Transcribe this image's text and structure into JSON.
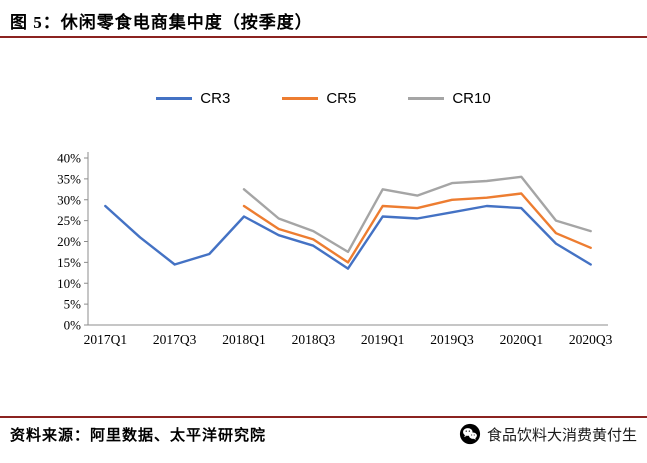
{
  "header": {
    "title": "图 5：休闲零食电商集中度（按季度）"
  },
  "chart_data": {
    "type": "line",
    "title": "休闲零食电商集中度（按季度）",
    "categories": [
      "2017Q1",
      "2017Q2",
      "2017Q3",
      "2017Q4",
      "2018Q1",
      "2018Q2",
      "2018Q3",
      "2018Q4",
      "2019Q1",
      "2019Q2",
      "2019Q3",
      "2019Q4",
      "2020Q1",
      "2020Q2",
      "2020Q3"
    ],
    "x_tick_labels": [
      "2017Q1",
      "2017Q3",
      "2018Q1",
      "2018Q3",
      "2019Q1",
      "2019Q3",
      "2020Q1",
      "2020Q3"
    ],
    "y_ticks": [
      "0%",
      "5%",
      "10%",
      "15%",
      "20%",
      "25%",
      "30%",
      "35%",
      "40%"
    ],
    "ylim": [
      0,
      40
    ],
    "grid": false,
    "legend_position": "top",
    "series": [
      {
        "name": "CR3",
        "color": "#4472C4",
        "values": [
          28.5,
          21,
          14.5,
          17,
          26,
          21.5,
          19,
          13.5,
          26,
          25.5,
          27,
          28.5,
          28,
          19.5,
          14.5
        ]
      },
      {
        "name": "CR5",
        "color": "#ED7D31",
        "values": [
          null,
          null,
          null,
          null,
          28.5,
          23,
          20.5,
          15,
          28.5,
          28,
          30,
          30.5,
          31.5,
          22,
          18.5
        ]
      },
      {
        "name": "CR10",
        "color": "#A5A5A5",
        "values": [
          null,
          null,
          null,
          null,
          32.5,
          25.5,
          22.5,
          17.5,
          32.5,
          31,
          34,
          34.5,
          35.5,
          25,
          22.5
        ]
      }
    ]
  },
  "footer": {
    "source": "资料来源：阿里数据、太平洋研究院",
    "brand": "食品饮料大消费黄付生"
  },
  "colors": {
    "accent_rule": "#8B2320",
    "axis": "#8c8c8c"
  }
}
